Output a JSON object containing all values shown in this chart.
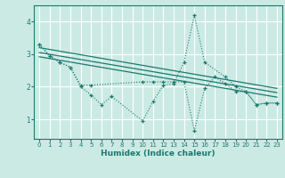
{
  "xlabel": "Humidex (Indice chaleur)",
  "background_color": "#cceae4",
  "grid_color": "#ffffff",
  "line_color": "#1a7a6e",
  "xlim": [
    -0.5,
    23.5
  ],
  "ylim": [
    0.4,
    4.5
  ],
  "yticks": [
    1,
    2,
    3,
    4
  ],
  "xticks": [
    0,
    1,
    2,
    3,
    4,
    5,
    6,
    7,
    8,
    9,
    10,
    11,
    12,
    13,
    14,
    15,
    16,
    17,
    18,
    19,
    20,
    21,
    22,
    23
  ],
  "series1_x": [
    0,
    1,
    2,
    3,
    4,
    5,
    6,
    7,
    10,
    11,
    12,
    13,
    14,
    15,
    16,
    18,
    19,
    20,
    21,
    22,
    23
  ],
  "series1_y": [
    3.3,
    2.95,
    2.75,
    2.6,
    2.0,
    1.75,
    1.45,
    1.7,
    0.95,
    1.55,
    2.05,
    2.1,
    2.75,
    4.2,
    2.75,
    2.3,
    2.0,
    1.85,
    1.45,
    1.5,
    1.5
  ],
  "series2_x": [
    0,
    1,
    2,
    3,
    4,
    5,
    10,
    11,
    12,
    13,
    14,
    15,
    16,
    17,
    18,
    19,
    20,
    21,
    22,
    23
  ],
  "series2_y": [
    3.3,
    2.95,
    2.75,
    2.6,
    2.05,
    2.05,
    2.15,
    2.15,
    2.15,
    2.15,
    2.15,
    0.65,
    1.95,
    2.3,
    2.1,
    1.85,
    1.85,
    1.45,
    1.5,
    1.5
  ],
  "line1_x": [
    0,
    23
  ],
  "line1_y": [
    3.2,
    1.95
  ],
  "line2_x": [
    0,
    23
  ],
  "line2_y": [
    3.05,
    1.82
  ],
  "line3_x": [
    0,
    23
  ],
  "line3_y": [
    2.92,
    1.68
  ]
}
